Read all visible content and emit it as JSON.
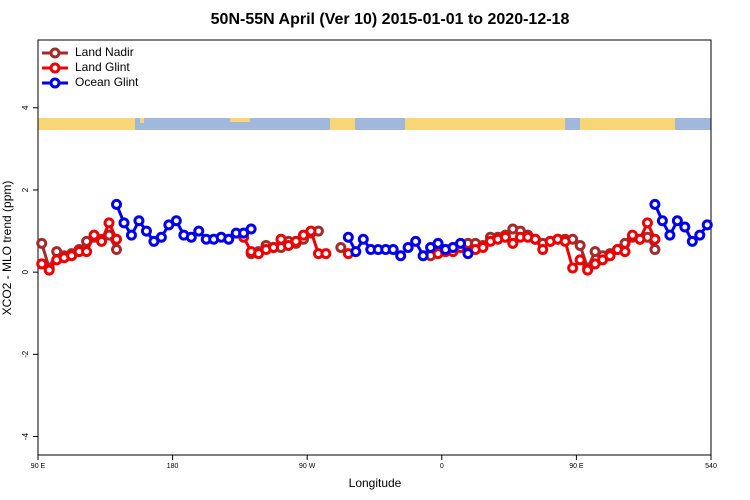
{
  "chart_data": {
    "type": "line",
    "title": "50N-55N April (Ver 10)   2015-01-01 to 2020-12-18",
    "xlabel": "Longitude",
    "ylabel": "XCO2 - MLO trend (ppm)",
    "xlim": [
      90,
      540
    ],
    "ylim": [
      -4.45,
      5.65
    ],
    "xticks": [
      {
        "value": 90,
        "label": "90 E"
      },
      180,
      {
        "value": 270,
        "label": "90 W"
      },
      {
        "value": 360,
        "label": "0"
      },
      {
        "value": 450,
        "label": "90 E"
      },
      540
    ],
    "yticks": [
      -4,
      -2,
      0,
      2,
      4
    ],
    "legend": "upper left",
    "series": [
      {
        "name": "Land Nadir",
        "color": "#a52a2a",
        "x": [
          92.5,
          97.5,
          102.5,
          107.5,
          112.5,
          117.5,
          122.5,
          127.5,
          132.5,
          137.5,
          142.5,
          187.5,
          232.5,
          237.5,
          242.5,
          247.5,
          252.5,
          257.5,
          262.5,
          267.5,
          272.5,
          277.5,
          285,
          292.5,
          317.5,
          352.5,
          357.5,
          362.5,
          367.5,
          372.5,
          377.5,
          382.5,
          387.5,
          392.5,
          397.5,
          402.5,
          407.5,
          412.5,
          417.5,
          422.5,
          427.5,
          432.5,
          437.5,
          442.5,
          447.5,
          452.5,
          457.5,
          462.5,
          467.5,
          472.5,
          477.5,
          482.5,
          487.5,
          492.5,
          497.5,
          502.5
        ],
        "values": [
          0.7,
          0.1,
          0.5,
          0.4,
          0.45,
          0.55,
          0.75,
          0.85,
          0.8,
          0.9,
          0.55,
          null,
          0.45,
          0.5,
          0.65,
          0.6,
          0.6,
          0.75,
          0.7,
          0.8,
          0.95,
          1.0,
          null,
          0.6,
          null,
          0.4,
          0.5,
          0.55,
          0.6,
          0.65,
          0.7,
          0.7,
          0.65,
          0.85,
          0.85,
          0.9,
          1.05,
          1.0,
          0.9,
          0.8,
          0.7,
          0.75,
          0.8,
          0.8,
          0.8,
          0.65,
          0.1,
          0.5,
          0.4,
          0.45,
          0.55,
          0.7,
          0.85,
          0.8,
          0.85,
          0.55
        ]
      },
      {
        "name": "Land Glint",
        "color": "#ee0000",
        "x": [
          92.5,
          97.5,
          102.5,
          107.5,
          112.5,
          117.5,
          122.5,
          127.5,
          132.5,
          137.5,
          142.5,
          187.5,
          227.5,
          232.5,
          237.5,
          242.5,
          247.5,
          252.5,
          257.5,
          262.5,
          267.5,
          272.5,
          277.5,
          282.5,
          290,
          297.5,
          320,
          357.5,
          362.5,
          367.5,
          372.5,
          377.5,
          382.5,
          387.5,
          392.5,
          397.5,
          402.5,
          407.5,
          412.5,
          417.5,
          422.5,
          427.5,
          432.5,
          437.5,
          442.5,
          447.5,
          452.5,
          457.5,
          462.5,
          467.5,
          472.5,
          477.5,
          482.5,
          487.5,
          492.5,
          497.5,
          502.5
        ],
        "values": [
          0.2,
          0.05,
          0.3,
          0.35,
          0.4,
          0.5,
          0.5,
          0.9,
          0.75,
          1.2,
          0.8,
          null,
          0.85,
          0.5,
          0.45,
          0.55,
          0.6,
          0.8,
          0.65,
          0.75,
          0.9,
          1.0,
          0.45,
          0.45,
          null,
          0.45,
          null,
          0.45,
          0.5,
          0.5,
          0.6,
          0.5,
          0.55,
          0.6,
          0.75,
          0.8,
          0.85,
          0.7,
          0.85,
          0.85,
          0.8,
          0.55,
          0.75,
          0.8,
          0.75,
          0.1,
          0.3,
          0.05,
          0.2,
          0.3,
          0.4,
          0.55,
          0.5,
          0.9,
          0.8,
          1.2,
          0.8
        ]
      },
      {
        "name": "Ocean Glint",
        "color": "#0000ee",
        "x": [
          142.5,
          147.5,
          152.5,
          157.5,
          162.5,
          167.5,
          172.5,
          177.5,
          182.5,
          187.5,
          192.5,
          197.5,
          202.5,
          207.5,
          212.5,
          217.5,
          222.5,
          227.5,
          232.5,
          265,
          297.5,
          302.5,
          307.5,
          312.5,
          317.5,
          322.5,
          327.5,
          332.5,
          337.5,
          342.5,
          347.5,
          352.5,
          357.5,
          362.5,
          367.5,
          372.5,
          377.5,
          440,
          502.5,
          507.5,
          512.5,
          517.5,
          522.5,
          527.5,
          532.5,
          537.5
        ],
        "values": [
          1.65,
          1.2,
          0.9,
          1.25,
          1.0,
          0.75,
          0.85,
          1.15,
          1.25,
          0.9,
          0.85,
          1.0,
          0.8,
          0.8,
          0.85,
          0.8,
          0.95,
          0.95,
          1.05,
          null,
          0.85,
          0.5,
          0.8,
          0.55,
          0.55,
          0.55,
          0.55,
          0.4,
          0.6,
          0.75,
          0.4,
          0.6,
          0.7,
          0.55,
          0.6,
          0.7,
          0.45,
          null,
          1.65,
          1.25,
          0.9,
          1.25,
          1.1,
          0.75,
          0.9,
          1.15
        ]
      }
    ]
  }
}
